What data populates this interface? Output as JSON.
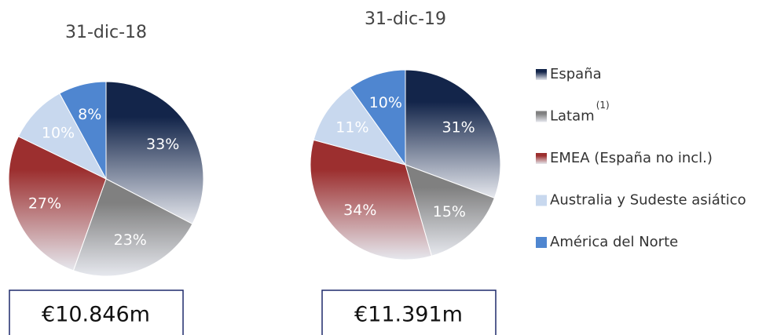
{
  "chart_data": [
    {
      "type": "pie",
      "title": "31-dic-18",
      "categories": [
        "España",
        "Latam",
        "EMEA (España no incl.)",
        "Australia y Sudeste asiático",
        "América del Norte"
      ],
      "values": [
        33,
        23,
        27,
        10,
        8
      ],
      "value_labels": [
        "33%",
        "23%",
        "27%",
        "10%",
        "8%"
      ],
      "colors": [
        "#13254a",
        "#808080",
        "#9c2f2f",
        "#c8d8ee",
        "#4f86d0"
      ],
      "total_label": "€10.846m",
      "category_note": "(1)"
    },
    {
      "type": "pie",
      "title": "31-dic-19",
      "categories": [
        "España",
        "Latam",
        "EMEA (España no incl.)",
        "Australia y Sudeste asiático",
        "América del Norte"
      ],
      "values": [
        31,
        15,
        34,
        11,
        10
      ],
      "value_labels": [
        "31%",
        "15%",
        "34%",
        "11%",
        "10%"
      ],
      "colors": [
        "#13254a",
        "#808080",
        "#9c2f2f",
        "#c8d8ee",
        "#4f86d0"
      ],
      "total_label": "€11.391m"
    }
  ]
}
